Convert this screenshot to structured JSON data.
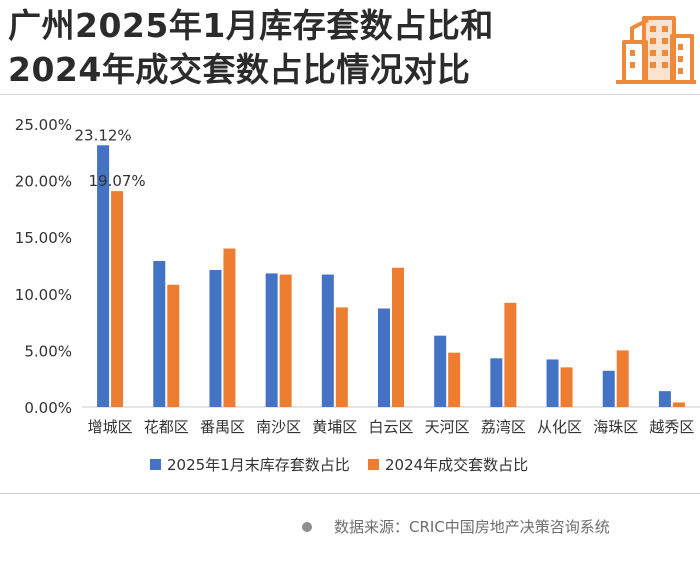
{
  "header": {
    "title_line1": "广州2025年1月库存套数占比和",
    "title_line2": "2024年成交套数占比情况对比"
  },
  "logo_icon": "city-buildings-icon",
  "colors": {
    "series1": "#4472C4",
    "series2": "#ED7D31",
    "axis_text": "#333333",
    "logo": "#EE8A3C"
  },
  "chart_data": {
    "type": "bar",
    "categories": [
      "增城区",
      "花都区",
      "番禺区",
      "南沙区",
      "黄埔区",
      "白云区",
      "天河区",
      "荔湾区",
      "从化区",
      "海珠区",
      "越秀区"
    ],
    "series": [
      {
        "name": "2025年1月末库存套数占比",
        "values": [
          23.12,
          12.9,
          12.1,
          11.8,
          11.7,
          8.7,
          6.3,
          4.3,
          4.2,
          3.2,
          1.4
        ]
      },
      {
        "name": "2024年成交套数占比",
        "values": [
          19.07,
          10.8,
          14.0,
          11.7,
          8.8,
          12.3,
          4.8,
          9.2,
          3.5,
          5.0,
          0.4
        ]
      }
    ],
    "data_labels": [
      {
        "series": 0,
        "index": 0,
        "text": "23.12%"
      },
      {
        "series": 1,
        "index": 0,
        "text": "19.07%"
      }
    ],
    "yticks": [
      "0.00%",
      "5.00%",
      "10.00%",
      "15.00%",
      "20.00%",
      "25.00%"
    ],
    "ylim": [
      0,
      25
    ],
    "unit": "%",
    "legend_position": "bottom"
  },
  "footer": {
    "source": "数据来源：CRIC中国房地产决策咨询系统"
  }
}
